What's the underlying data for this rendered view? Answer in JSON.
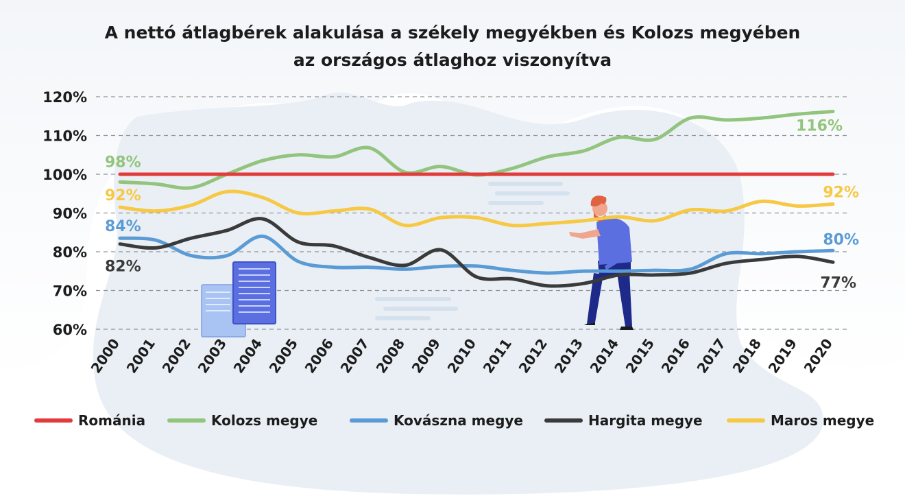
{
  "title_line1": "A nettó átlagbérek alakulása a székely megyékben és Kolozs megyében",
  "title_line2": "az országos átlaghoz viszonyítva",
  "chart_data": {
    "type": "line",
    "title": "A nettó átlagbérek alakulása a székely megyékben és Kolozs megyében az országos átlaghoz viszonyítva",
    "x": [
      "2000",
      "2001",
      "2002",
      "2003",
      "2004",
      "2005",
      "2006",
      "2007",
      "2008",
      "2009",
      "2010",
      "2011",
      "2012",
      "2013",
      "2014",
      "2015",
      "2016",
      "2017",
      "2018",
      "2019",
      "2020"
    ],
    "yticks": [
      "60%",
      "70%",
      "80%",
      "90%",
      "100%",
      "110%",
      "120%"
    ],
    "ylim": [
      60,
      120
    ],
    "grid": true,
    "legend_position": "bottom",
    "series": [
      {
        "name": "Románia",
        "color": "#e23b3b",
        "values": [
          100,
          100,
          100,
          100,
          100,
          100,
          100,
          100,
          100,
          100,
          100,
          100,
          100,
          100,
          100,
          100,
          100,
          100,
          100,
          100,
          100
        ]
      },
      {
        "name": "Kolozs megye",
        "color": "#93c47d",
        "values": [
          98,
          97.5,
          96.5,
          100,
          103.5,
          105,
          104.5,
          106.8,
          100.5,
          102,
          99.8,
          101.5,
          104.5,
          106,
          109.5,
          109,
          114.5,
          114,
          114.5,
          115.5,
          116.2
        ]
      },
      {
        "name": "Kovászna megye",
        "color": "#5b9bd5",
        "values": [
          83.5,
          83,
          79,
          79,
          84,
          77.5,
          76,
          76,
          75.5,
          76.2,
          76.3,
          75.2,
          74.5,
          75,
          75,
          75.2,
          75.5,
          79.5,
          79.5,
          80,
          80.3
        ]
      },
      {
        "name": "Hargita megye",
        "color": "#3a3a3a",
        "values": [
          82,
          81,
          83.5,
          85.5,
          88.5,
          82.5,
          81.5,
          78.5,
          76.5,
          80.5,
          73.5,
          73,
          71.2,
          71.8,
          74,
          74,
          74.5,
          77,
          78,
          78.8,
          77.3
        ]
      },
      {
        "name": "Maros megye",
        "color": "#f7c843",
        "values": [
          91.5,
          90.5,
          92,
          95.5,
          94,
          90,
          90.5,
          91,
          86.8,
          88.8,
          88.8,
          86.8,
          87.3,
          88,
          89,
          88,
          90.8,
          90.5,
          93,
          91.8,
          92.3
        ]
      }
    ],
    "annotations": [
      {
        "text": "98%",
        "series": "Kolozs megye",
        "year": "2000"
      },
      {
        "text": "116%",
        "series": "Kolozs megye",
        "year": "2020"
      },
      {
        "text": "92%",
        "series": "Maros megye",
        "year": "2000"
      },
      {
        "text": "92%",
        "series": "Maros megye",
        "year": "2020"
      },
      {
        "text": "84%",
        "series": "Kovászna megye",
        "year": "2000"
      },
      {
        "text": "80%",
        "series": "Kovászna megye",
        "year": "2020"
      },
      {
        "text": "82%",
        "series": "Hargita megye",
        "year": "2000"
      },
      {
        "text": "77%",
        "series": "Hargita megye",
        "year": "2020"
      }
    ]
  }
}
